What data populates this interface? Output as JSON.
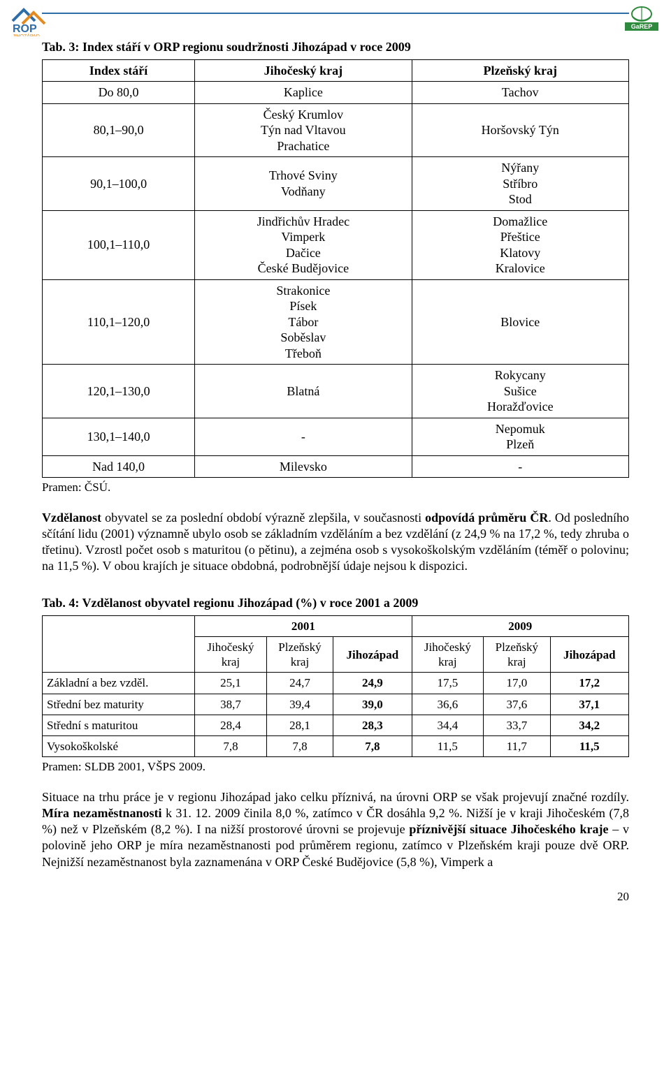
{
  "colors": {
    "rule": "#2f6da8",
    "rop_blue": "#2f6da8",
    "rop_orange": "#e58a1f",
    "garep_green": "#2e8b3d",
    "text": "#000000",
    "bg": "#ffffff"
  },
  "logos": {
    "left_alt": "ROP Jihozápad",
    "right_alt": "GaREP"
  },
  "table3": {
    "caption": "Tab. 3: Index stáří v ORP regionu soudržnosti Jihozápad v roce 2009",
    "headers": [
      "Index stáří",
      "Jihočeský kraj",
      "Plzeňský kraj"
    ],
    "rows": [
      {
        "c0": "Do 80,0",
        "c1": "Kaplice",
        "c2": "Tachov"
      },
      {
        "c0": "80,1–90,0",
        "c1": "Český Krumlov\nTýn nad Vltavou\nPrachatice",
        "c2": "Horšovský Týn"
      },
      {
        "c0": "90,1–100,0",
        "c1": "Trhové Sviny\nVodňany",
        "c2": "Nýřany\nStříbro\nStod"
      },
      {
        "c0": "100,1–110,0",
        "c1": "Jindřichův Hradec\nVimperk\nDačice\nČeské Budějovice",
        "c2": "Domažlice\nPřeštice\nKlatovy\nKralovice"
      },
      {
        "c0": "110,1–120,0",
        "c1": "Strakonice\nPísek\nTábor\nSoběslav\nTřeboň",
        "c2": "Blovice"
      },
      {
        "c0": "120,1–130,0",
        "c1": "Blatná",
        "c2": "Rokycany\nSušice\nHoražďovice"
      },
      {
        "c0": "130,1–140,0",
        "c1": "-",
        "c2": "Nepomuk\nPlzeň"
      },
      {
        "c0": "Nad 140,0",
        "c1": "Milevsko",
        "c2": "-"
      }
    ],
    "source": "Pramen: ČSÚ."
  },
  "para1": {
    "seg1_b": "Vzdělanost",
    "seg2": " obyvatel se za poslední období výrazně zlepšila, v současnosti ",
    "seg3_b": "odpovídá průměru ČR",
    "seg4": ". Od posledního sčítání lidu (2001) významně ubylo osob se základním vzděláním a bez vzdělání (z 24,9 % na 17,2 %, tedy zhruba o třetinu). Vzrostl počet osob s maturitou (o pětinu), a zejména osob s vysokoškolským vzděláním (téměř o polovinu; na 11,5 %). V obou krajích je situace obdobná, podrobnější údaje nejsou k dispozici."
  },
  "table4": {
    "caption": "Tab. 4: Vzdělanost obyvatel regionu Jihozápad (%) v roce 2001 a 2009",
    "year1": "2001",
    "year2": "2009",
    "sub_headers": [
      "Jihočeský kraj",
      "Plzeňský kraj",
      "Jihozápad",
      "Jihočeský kraj",
      "Plzeňský kraj",
      "Jihozápad"
    ],
    "rows": [
      {
        "label": "Základní a bez vzděl.",
        "v": [
          "25,1",
          "24,7",
          "24,9",
          "17,5",
          "17,0",
          "17,2"
        ]
      },
      {
        "label": "Střední bez maturity",
        "v": [
          "38,7",
          "39,4",
          "39,0",
          "36,6",
          "37,6",
          "37,1"
        ]
      },
      {
        "label": "Střední s maturitou",
        "v": [
          "28,4",
          "28,1",
          "28,3",
          "34,4",
          "33,7",
          "34,2"
        ]
      },
      {
        "label": "Vysokoškolské",
        "v": [
          "7,8",
          "7,8",
          "7,8",
          "11,5",
          "11,7",
          "11,5"
        ]
      }
    ],
    "source": "Pramen: SLDB 2001, VŠPS 2009."
  },
  "para2": {
    "seg1": "Situace na trhu práce je v regionu Jihozápad jako celku příznivá, na úrovni ORP se však projevují značné rozdíly. ",
    "seg2_b": "Míra nezaměstnanosti",
    "seg3": " k 31. 12. 2009 činila 8,0 %, zatímco v ČR dosáhla 9,2 %. Nižší je v kraji Jihočeském (7,8 %) než v Plzeňském (8,2 %). I na nižší prostorové úrovni se projevuje ",
    "seg4_b": "příznivější situace Jihočeského kraje",
    "seg5": " – v polovině jeho ORP je míra nezaměstnanosti pod průměrem regionu, zatímco v Plzeňském kraji pouze dvě ORP. Nejnižší nezaměstnanost byla zaznamenána v ORP České Budějovice (5,8 %), Vimperk a"
  },
  "page_number": "20"
}
